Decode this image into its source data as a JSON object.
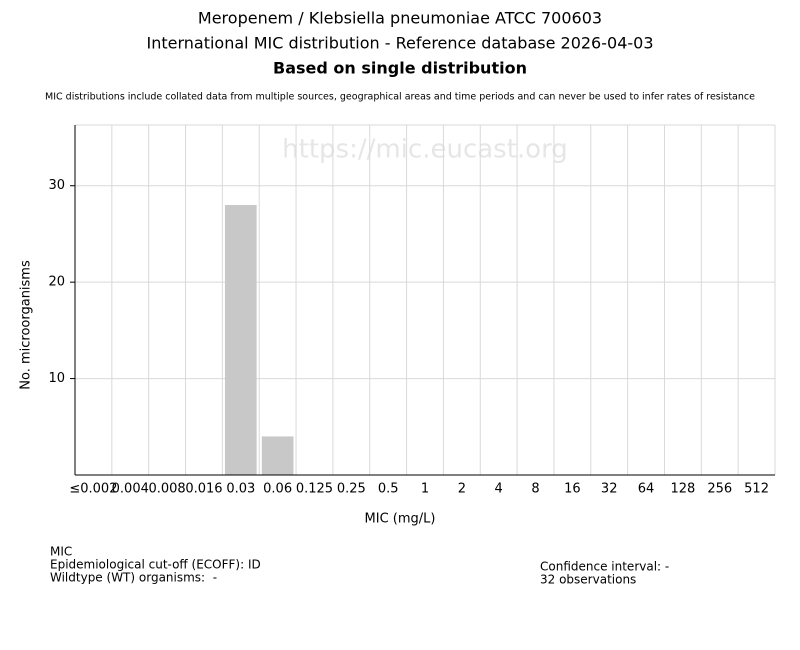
{
  "chart_data": {
    "type": "bar",
    "title": "Meropenem / Klebsiella pneumoniae ATCC 700603",
    "subtitle": "International MIC distribution - Reference database 2026-04-03",
    "subtitle2": "Based on single distribution",
    "note": "MIC distributions include collated data from multiple sources, geographical areas and time periods and can never be used to infer rates of resistance",
    "watermark": "https://mic.eucast.org",
    "x_label": "MIC (mg/L)",
    "y_label": "No. microorganisms",
    "categories": [
      "≤0.002",
      "0.004",
      "0.008",
      "0.016",
      "0.03",
      "0.06",
      "0.125",
      "0.25",
      "0.5",
      "1",
      "2",
      "4",
      "8",
      "16",
      "32",
      "64",
      "128",
      "256",
      "512"
    ],
    "values": [
      0,
      0,
      0,
      0,
      28,
      4,
      0,
      0,
      0,
      0,
      0,
      0,
      0,
      0,
      0,
      0,
      0,
      0,
      0
    ],
    "color": "#c8c8c8",
    "ylim": [
      0,
      36.3
    ],
    "yticks": [
      10,
      20,
      30
    ],
    "grid": true,
    "footer_left": [
      "MIC",
      "Epidemiological cut-off (ECOFF): ID",
      "Wildtype (WT) organisms:  -"
    ],
    "footer_right": [
      "Confidence interval: -",
      "32 observations"
    ]
  }
}
